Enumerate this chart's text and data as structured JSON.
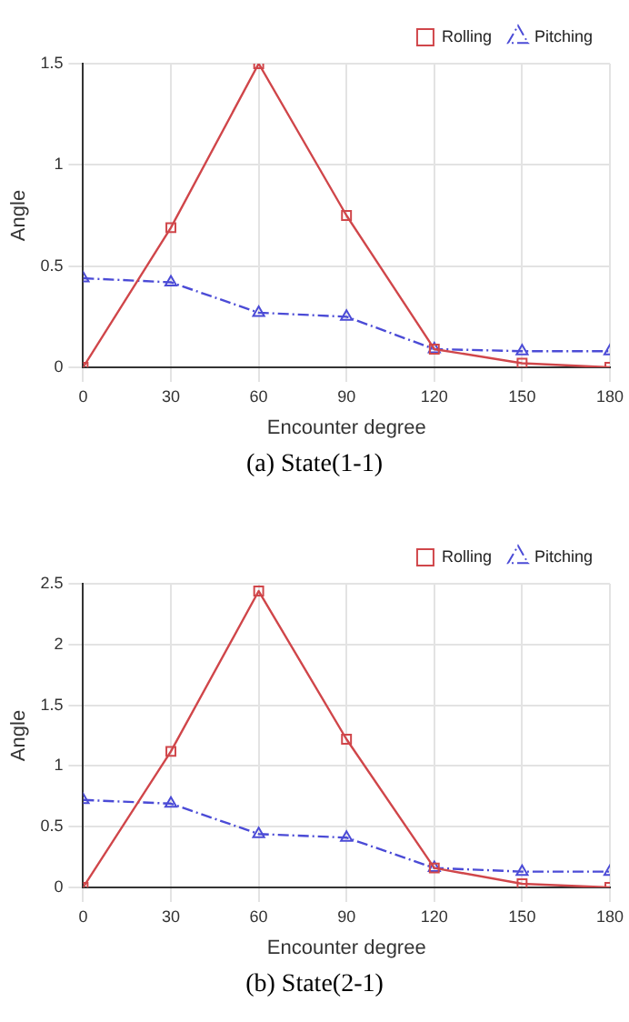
{
  "chart_data": [
    {
      "type": "line",
      "xlabel": "Encounter degree",
      "ylabel": "Angle",
      "x": [
        0,
        30,
        60,
        90,
        120,
        150,
        180
      ],
      "xlim": [
        0,
        180
      ],
      "xticks": [
        0,
        30,
        60,
        90,
        120,
        150,
        180
      ],
      "ylim": [
        0,
        1.5
      ],
      "yticks": [
        0,
        0.5,
        1,
        1.5
      ],
      "grid": true,
      "legend": "top right",
      "annotations": [
        "(a)  State(1-1)"
      ],
      "series": [
        {
          "name": "Rolling",
          "color": "#d0464a",
          "marker": "square",
          "line_style": "solid",
          "values": [
            0,
            0.69,
            1.5,
            0.75,
            0.09,
            0.02,
            0
          ]
        },
        {
          "name": "Pitching",
          "color": "#4b4bd6",
          "marker": "triangle",
          "line_style": "dashed",
          "values": [
            0.44,
            0.42,
            0.27,
            0.25,
            0.09,
            0.08,
            0.08
          ]
        }
      ]
    },
    {
      "type": "line",
      "xlabel": "Encounter degree",
      "ylabel": "Angle",
      "x": [
        0,
        30,
        60,
        90,
        120,
        150,
        180
      ],
      "xlim": [
        0,
        180
      ],
      "xticks": [
        0,
        30,
        60,
        90,
        120,
        150,
        180
      ],
      "ylim": [
        0,
        2.5
      ],
      "yticks": [
        0,
        0.5,
        1,
        1.5,
        2,
        2.5
      ],
      "grid": true,
      "legend": "top right",
      "annotations": [
        "(b)  State(2-1)"
      ],
      "series": [
        {
          "name": "Rolling",
          "color": "#d0464a",
          "marker": "square",
          "line_style": "solid",
          "values": [
            0,
            1.12,
            2.44,
            1.22,
            0.16,
            0.03,
            0
          ]
        },
        {
          "name": "Pitching",
          "color": "#4b4bd6",
          "marker": "triangle",
          "line_style": "dashed",
          "values": [
            0.72,
            0.69,
            0.44,
            0.41,
            0.16,
            0.13,
            0.13
          ]
        }
      ]
    }
  ]
}
